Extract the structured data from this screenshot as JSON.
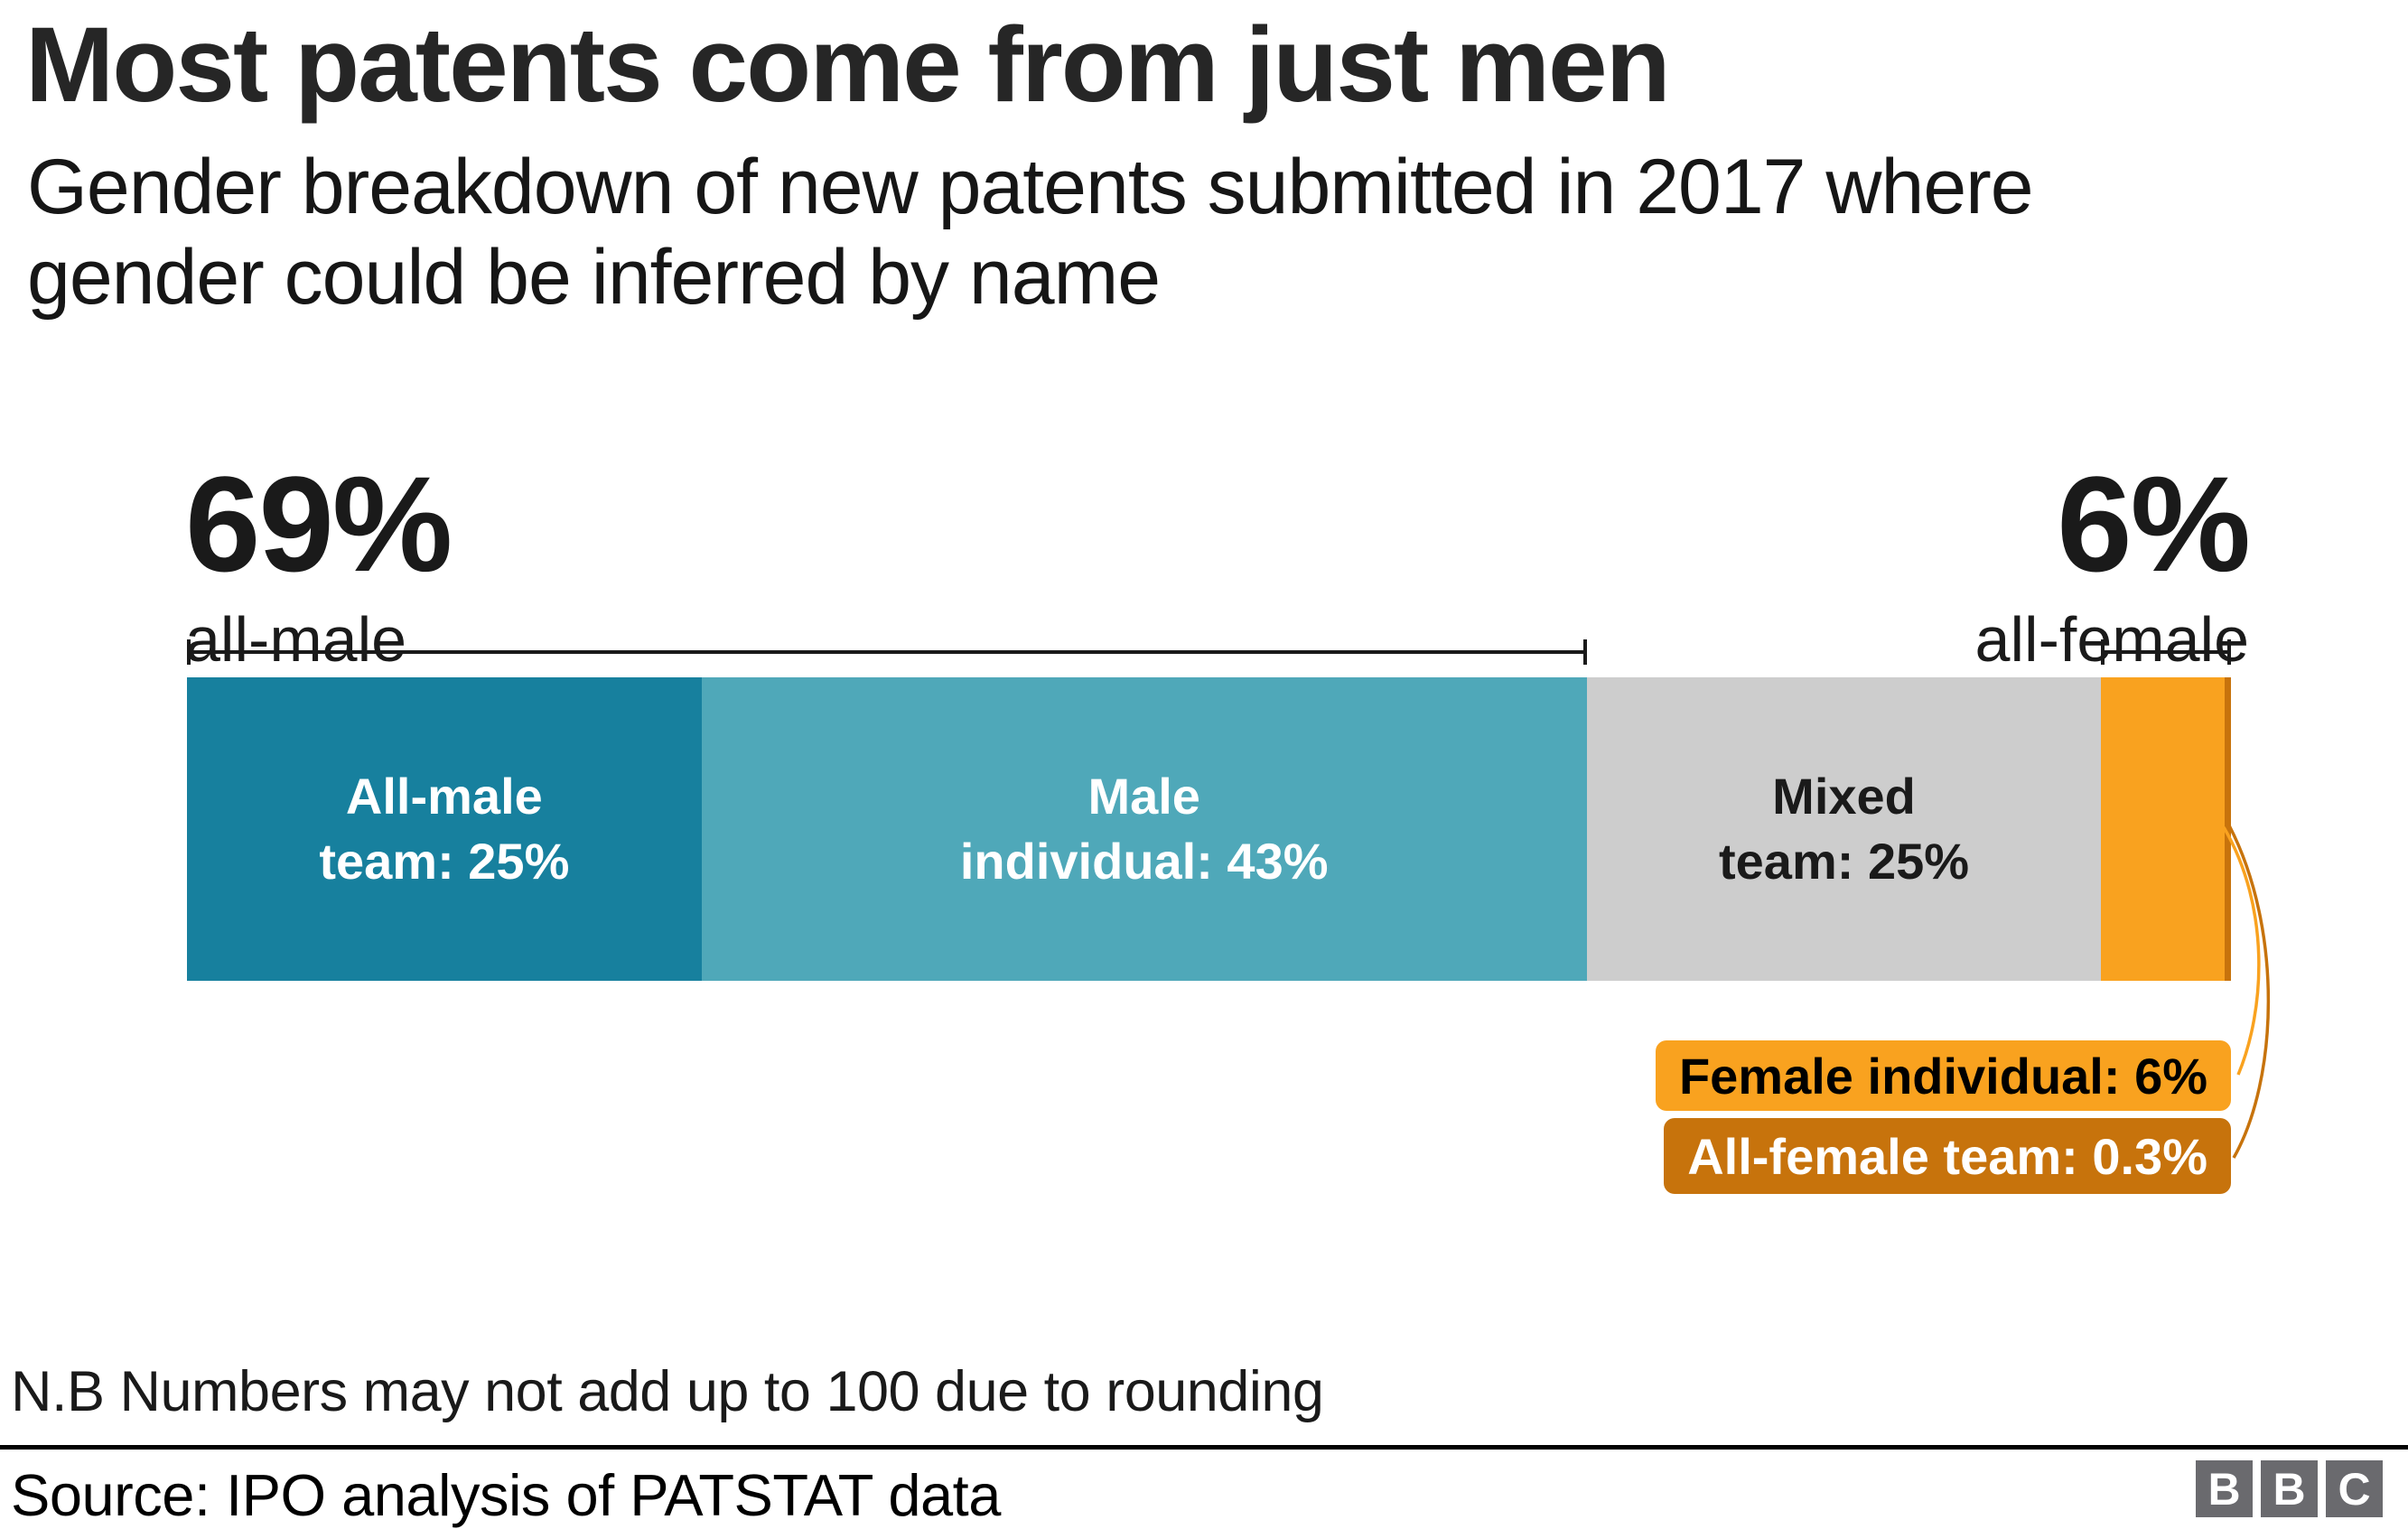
{
  "title": "Most patents come from just men",
  "subtitle_line1": "Gender breakdown of new patents submitted in 2017 where",
  "subtitle_line2": "gender could be inferred by name",
  "annotations": {
    "left": {
      "value": "69%",
      "label": "all-male"
    },
    "right": {
      "value": "6%",
      "label": "all-female"
    }
  },
  "chart_data": {
    "type": "bar",
    "stacked": true,
    "orientation": "horizontal",
    "unit": "percent",
    "title": "Gender breakdown of new patents submitted in 2017 where gender could be inferred by name",
    "categories": [
      "All-male team",
      "Male individual",
      "Mixed team",
      "Female individual",
      "All-female team"
    ],
    "values": [
      25,
      43,
      25,
      6,
      0.3
    ],
    "segments": [
      {
        "name": "All-male team",
        "value": 25,
        "label_line1": "All-male",
        "label_line2": "team: 25%",
        "color": "#17809E",
        "text_color": "#FFFFFF"
      },
      {
        "name": "Male individual",
        "value": 43,
        "label_line1": "Male",
        "label_line2": "individual: 43%",
        "color": "#4FA8B9",
        "text_color": "#FFFFFF"
      },
      {
        "name": "Mixed team",
        "value": 25,
        "label_line1": "Mixed",
        "label_line2": "team: 25%",
        "color": "#CDCDCD",
        "text_color": "#1A1A1A"
      },
      {
        "name": "Female individual",
        "value": 6,
        "color": "#F9A21F"
      },
      {
        "name": "All-female team",
        "value": 0.3,
        "color": "#C7730C"
      }
    ],
    "brackets": [
      {
        "value": "69%",
        "label": "all-male",
        "covers": [
          "All-male team",
          "Male individual"
        ]
      },
      {
        "value": "6%",
        "label": "all-female",
        "covers": [
          "Female individual",
          "All-female team"
        ]
      }
    ],
    "callouts": [
      {
        "label": "Female individual: 6%",
        "bg": "#F9A21F",
        "text_color": "#000000"
      },
      {
        "label": "All-female team: 0.3%",
        "bg": "#C7730C",
        "text_color": "#FFFFFF"
      }
    ],
    "legend_position": "none",
    "grid": false
  },
  "footnote": "N.B Numbers may not add up to 100 due to rounding",
  "source": "Source: IPO analysis of PATSTAT data",
  "logo": {
    "letters": [
      "B",
      "B",
      "C"
    ],
    "color": "#6A6A6E"
  }
}
